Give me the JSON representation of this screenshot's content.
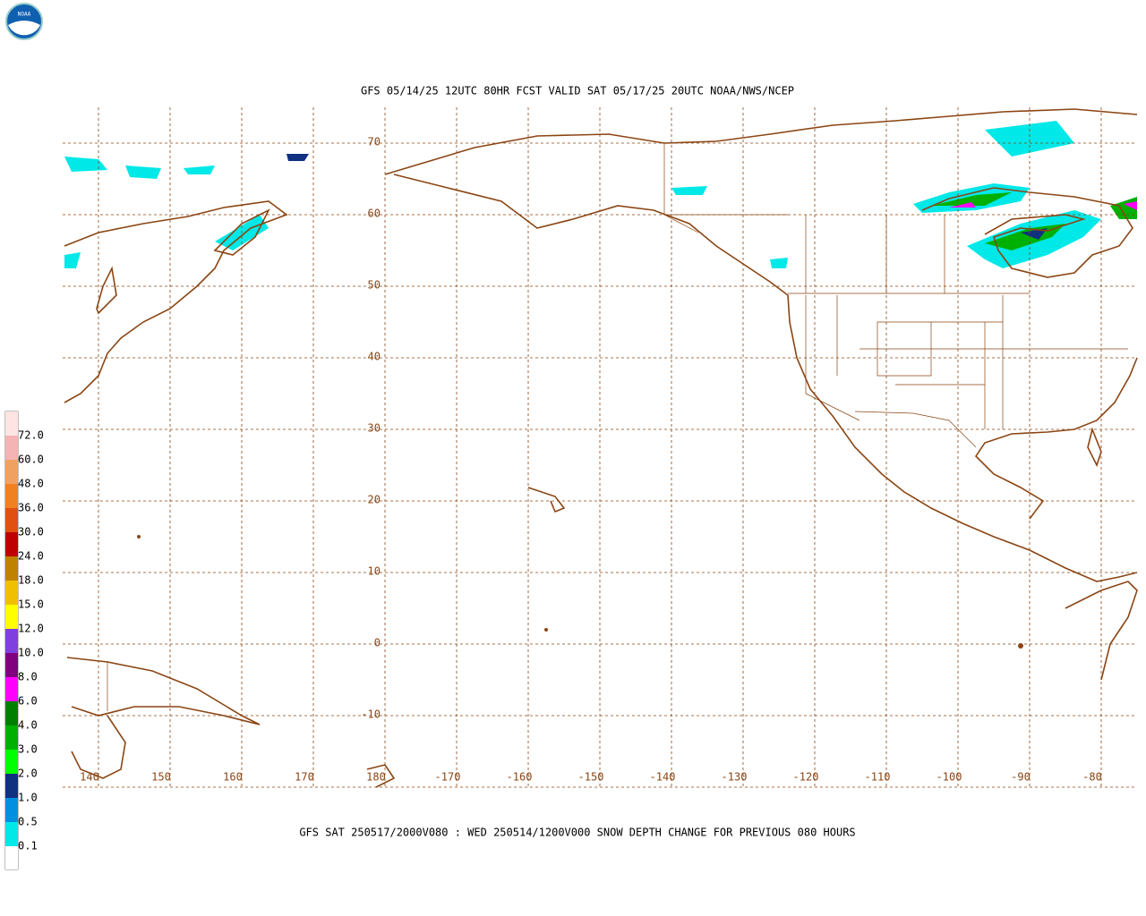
{
  "header": {
    "title": "GFS 05/14/25 12UTC 80HR FCST VALID SAT 05/17/25 20UTC NOAA/NWS/NCEP"
  },
  "footer": {
    "caption": "GFS SAT 250517/2000V080 : WED 250514/1200V000 SNOW DEPTH CHANGE FOR PREVIOUS 080 HOURS"
  },
  "map": {
    "lat_labels": [
      70,
      60,
      50,
      40,
      30,
      20,
      10,
      0,
      -10
    ],
    "lon_labels": [
      140,
      150,
      160,
      170,
      180,
      -170,
      -160,
      -150,
      -140,
      -130,
      -120,
      -110,
      -100,
      -90,
      -80
    ]
  },
  "legend": {
    "labels": [
      "72.0",
      "60.0",
      "48.0",
      "36.0",
      "30.0",
      "24.0",
      "18.0",
      "15.0",
      "12.0",
      "10.0",
      "8.0",
      "6.0",
      "4.0",
      "3.0",
      "2.0",
      "1.0",
      "0.5",
      "0.1"
    ],
    "colors": [
      "#ffe4e4",
      "#f4b4b4",
      "#f0a060",
      "#f08020",
      "#e05010",
      "#c00000",
      "#c08000",
      "#f0c000",
      "#ffff00",
      "#8040e0",
      "#800080",
      "#ff00ff",
      "#008000",
      "#00b000",
      "#00ff00",
      "#103080",
      "#0090e0",
      "#00e8e8",
      "#ffffff"
    ]
  }
}
